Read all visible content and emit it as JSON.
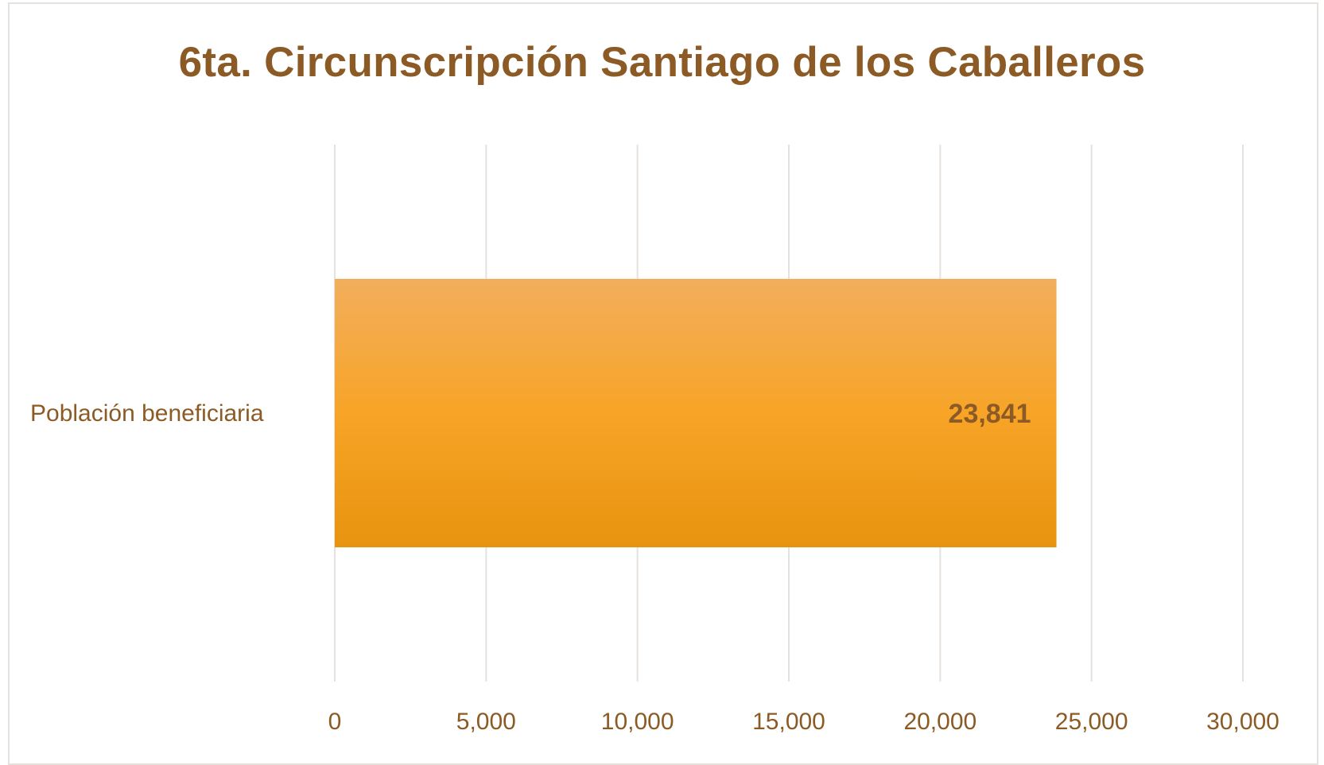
{
  "chart_data": {
    "type": "bar",
    "orientation": "horizontal",
    "title": "6ta. Circunscripción Santiago de los Caballeros",
    "xlabel": "",
    "ylabel": "",
    "categories": [
      "Población beneficiaria"
    ],
    "values": [
      23841
    ],
    "data_labels": [
      "23,841"
    ],
    "xlim": [
      0,
      30000
    ],
    "xticks": [
      0,
      5000,
      10000,
      15000,
      20000,
      25000,
      30000
    ],
    "xtick_labels": [
      "0",
      "5,000",
      "10,000",
      "15,000",
      "20,000",
      "25,000",
      "30,000"
    ],
    "grid": "vertical",
    "legend": "none",
    "colors": {
      "bar_top": "#f2ae5c",
      "bar_mid": "#f7a427",
      "bar_bottom": "#e8930f",
      "text": "#8c5a25",
      "grid": "#e6e1dc"
    }
  }
}
